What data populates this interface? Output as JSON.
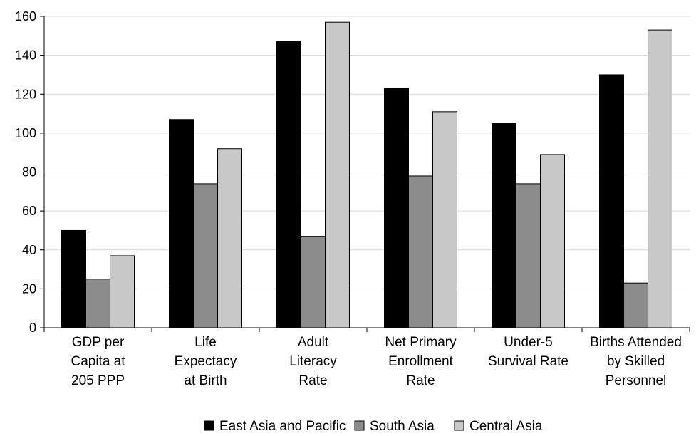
{
  "chart_data": {
    "type": "bar",
    "categories": [
      [
        "GDP per",
        "Capita at",
        "205 PPP"
      ],
      [
        "Life",
        "Expectacy",
        "at Birth"
      ],
      [
        "Adult",
        "Literacy",
        "Rate"
      ],
      [
        "Net Primary",
        "Enrollment",
        "Rate"
      ],
      [
        "Under-5",
        "Survival Rate"
      ],
      [
        "Births Attended",
        "by Skilled",
        "Personnel"
      ]
    ],
    "series": [
      {
        "name": "East Asia and Pacific",
        "color": "#000000",
        "values": [
          50,
          107,
          147,
          123,
          105,
          130
        ]
      },
      {
        "name": "South Asia",
        "color": "#8c8c8c",
        "values": [
          25,
          74,
          47,
          78,
          74,
          23
        ]
      },
      {
        "name": "Central Asia",
        "color": "#c8c8c8",
        "values": [
          37,
          92,
          157,
          111,
          89,
          153
        ]
      }
    ],
    "ylim": [
      0,
      160
    ],
    "yticks": [
      0,
      20,
      40,
      60,
      80,
      100,
      120,
      140,
      160
    ],
    "grid": true,
    "legend_position": "bottom"
  }
}
